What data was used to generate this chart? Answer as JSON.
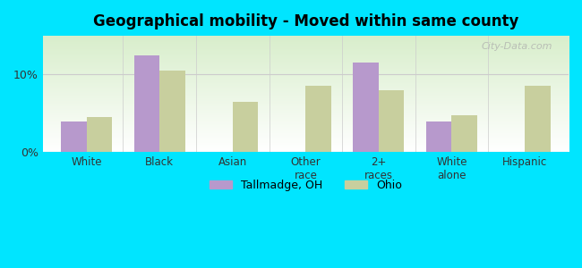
{
  "title": "Geographical mobility - Moved within same county",
  "categories": [
    "White",
    "Black",
    "Asian",
    "Other\nrace",
    "2+\nraces",
    "White\nalone",
    "Hispanic"
  ],
  "tallmadge_values": [
    4.0,
    12.5,
    0,
    0,
    11.5,
    4.0,
    0
  ],
  "ohio_values": [
    4.5,
    10.5,
    6.5,
    8.5,
    8.0,
    4.8,
    8.5
  ],
  "tallmadge_color": "#b799cc",
  "ohio_color": "#c8cf9e",
  "background_outer": "#00e5ff",
  "background_inner_top": "#d8eecb",
  "background_inner_bottom": "#ffffff",
  "yticks": [
    0,
    10
  ],
  "ytick_labels": [
    "0%",
    "10%"
  ],
  "ylim": [
    0,
    15
  ],
  "bar_width": 0.35,
  "legend_labels": [
    "Tallmadge, OH",
    "Ohio"
  ],
  "watermark": "City-Data.com"
}
